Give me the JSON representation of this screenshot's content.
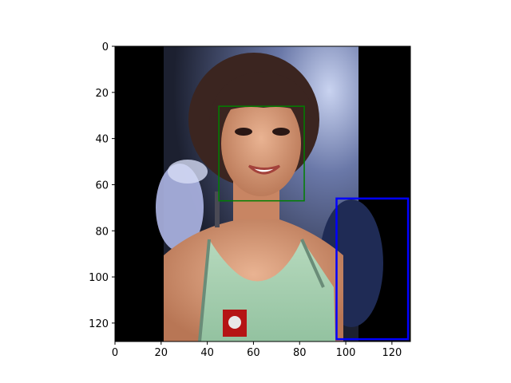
{
  "chart_data": {
    "type": "image",
    "title": "",
    "xlabel": "",
    "ylabel": "",
    "xlim": [
      0,
      128
    ],
    "ylim": [
      128,
      0
    ],
    "xticks": [
      0,
      20,
      40,
      60,
      80,
      100,
      120
    ],
    "yticks": [
      0,
      20,
      40,
      60,
      80,
      100,
      120
    ],
    "grid": false,
    "image": {
      "content": "portrait photograph of a smiling woman with a dark bob haircut wearing a light-green embellished top, centred on a black background",
      "photo_extent_x": [
        21,
        106
      ]
    },
    "boxes": [
      {
        "label": "",
        "color": "#008000",
        "x": [
          45,
          82
        ],
        "y": [
          26,
          67
        ]
      },
      {
        "label": "",
        "color": "#0000ff",
        "x": [
          96,
          127
        ],
        "y": [
          66,
          127
        ]
      }
    ]
  }
}
